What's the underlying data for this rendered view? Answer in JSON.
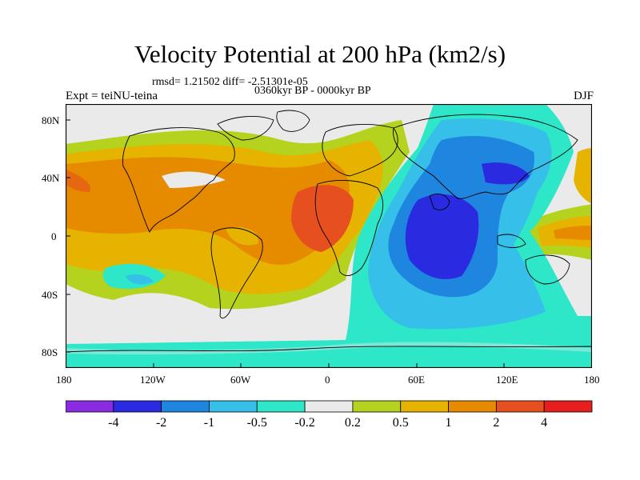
{
  "title": "Velocity Potential at 200 hPa (km2/s)",
  "stats_line": "rmsd= 1.21502 diff= -2.51301e-05",
  "experiment": "Expt = teiNU-teina",
  "period": "0360kyr BP - 0000kyr BP",
  "season": "DJF",
  "lat_labels": [
    "80N",
    "40N",
    "0",
    "40S",
    "80S"
  ],
  "lon_labels": [
    "180",
    "120W",
    "60W",
    "0",
    "60E",
    "120E",
    "180"
  ],
  "colorbar": {
    "colors": [
      "#8a2be2",
      "#2a2ae0",
      "#1f86e0",
      "#36bfe8",
      "#2ee6c8",
      "#eaeaea",
      "#b4d21e",
      "#e6b400",
      "#e68a00",
      "#e6501e",
      "#e61e1e"
    ],
    "labels": [
      "-4",
      "-2",
      "-1",
      "-0.5",
      "-0.2",
      "0.2",
      "0.5",
      "1",
      "2",
      "4"
    ]
  }
}
